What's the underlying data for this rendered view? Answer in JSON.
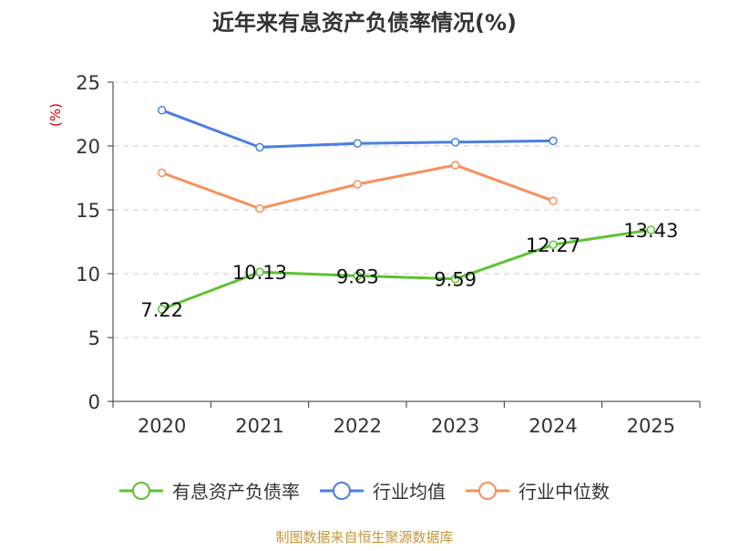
{
  "chart_data": {
    "type": "line",
    "title": "近年来有息资产负债率情况(%)",
    "ylabel": "(%)",
    "source": "制图数据来自恒生聚源数据库",
    "categories": [
      "2020",
      "2021",
      "2022",
      "2023",
      "2024",
      "2025"
    ],
    "ylim": [
      0,
      25
    ],
    "yticks": [
      "0",
      "5",
      "10",
      "15",
      "20",
      "25"
    ],
    "grid": true,
    "legend_position": "bottom",
    "series": [
      {
        "name": "有息资产负债率",
        "color": "#5cc231",
        "values": [
          7.22,
          10.13,
          9.83,
          9.59,
          12.27,
          13.43
        ],
        "labels": [
          "7.22",
          "10.13",
          "9.83",
          "9.59",
          "12.27",
          "13.43"
        ],
        "show_labels": true
      },
      {
        "name": "行业均值",
        "color": "#4a7fe0",
        "values": [
          22.8,
          19.9,
          20.2,
          20.3,
          20.4,
          null
        ],
        "show_labels": false
      },
      {
        "name": "行业中位数",
        "color": "#f6915c",
        "values": [
          17.9,
          15.1,
          17.0,
          18.5,
          15.7,
          null
        ],
        "show_labels": false
      }
    ],
    "colors": {
      "title": "#333333",
      "ylabel": "#cc0000",
      "source": "#c7973b",
      "grid": "#cccccc",
      "axis": "#333333"
    }
  }
}
